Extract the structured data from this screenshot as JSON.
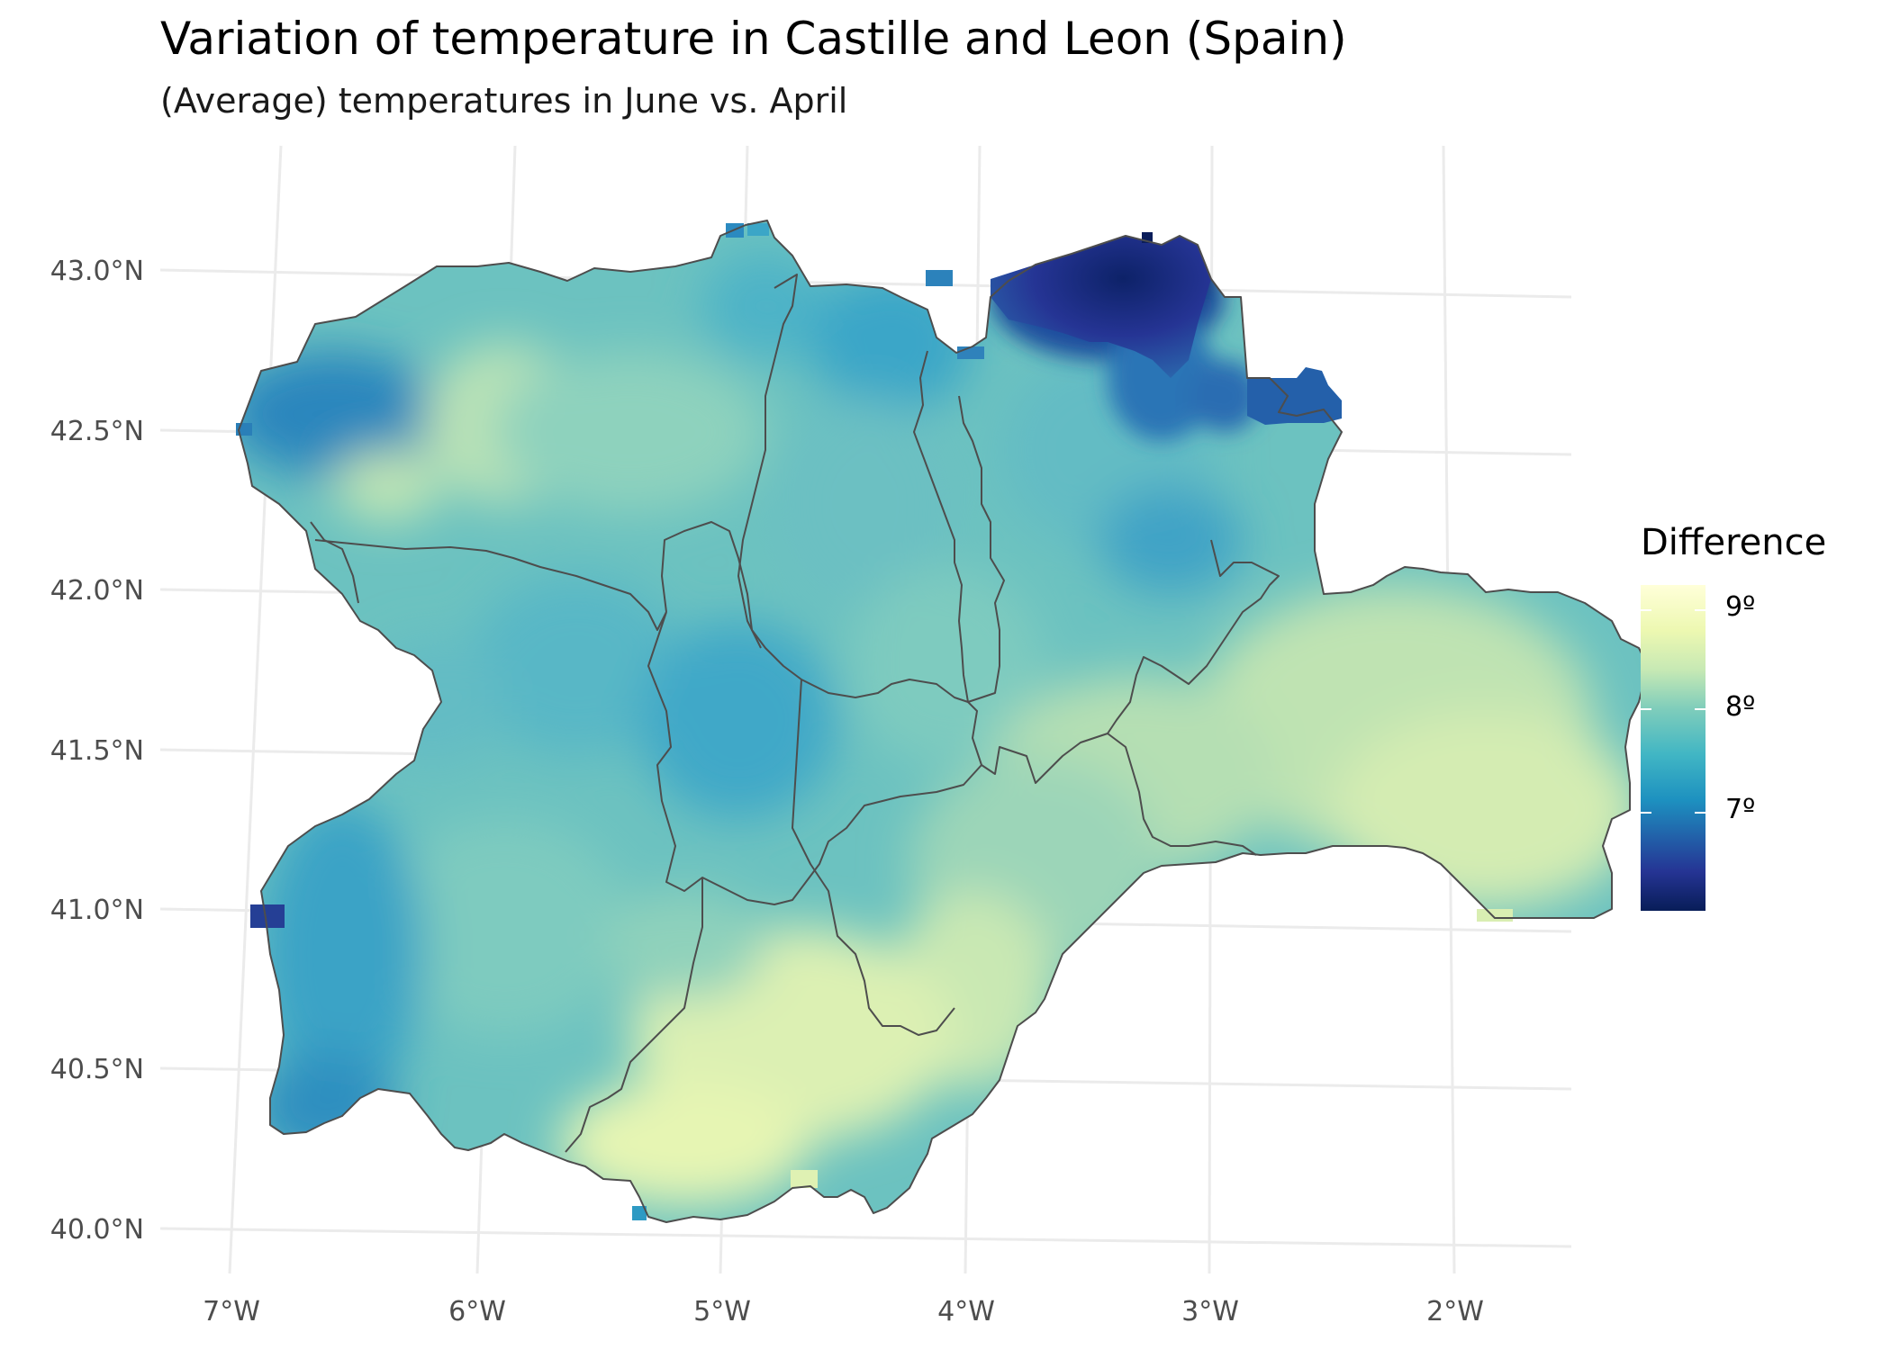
{
  "title": "Variation of temperature in Castille and Leon (Spain)",
  "subtitle": "(Average) temperatures in June vs. April",
  "legend": {
    "title": "Difference",
    "labels": [
      "9º",
      "8º",
      "7º"
    ],
    "colors": [
      "#ffffd9",
      "#edf8b1",
      "#c7e9b4",
      "#7fcdbb",
      "#41b6c4",
      "#1d91c0",
      "#225ea8",
      "#253494",
      "#081d58"
    ]
  },
  "axes": {
    "lat_labels": [
      "43.0°N",
      "42.5°N",
      "42.0°N",
      "41.5°N",
      "41.0°N",
      "40.5°N",
      "40.0°N"
    ],
    "lon_labels": [
      "7°W",
      "6°W",
      "5°W",
      "4°W",
      "3°W",
      "2°W"
    ]
  },
  "map": {
    "region": "Castille and Leon",
    "colors": {
      "northwest_cool": "#2a7fb8",
      "central": "#5fb8c4",
      "southeast_warm": "#dcef b3",
      "northeast_cold": "#1f3f93",
      "border": "#4d4d4d",
      "grid": "#ebebeb"
    }
  }
}
